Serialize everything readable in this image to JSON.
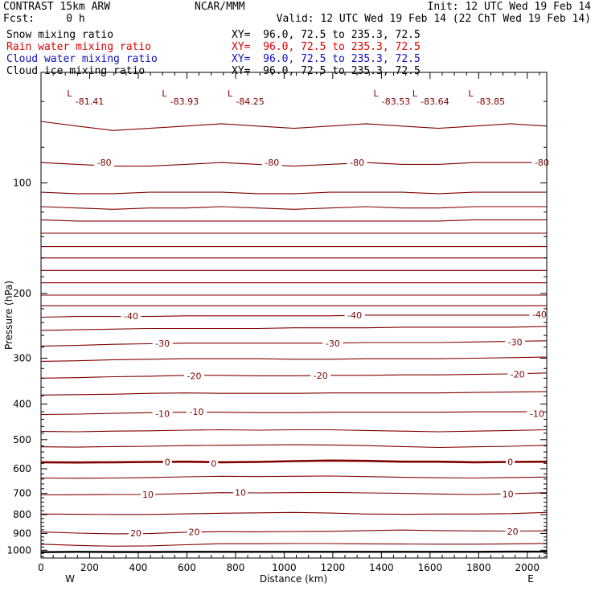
{
  "header": {
    "left1": "CONTRAST 15km ARW",
    "left2": "Fcst:     0 h",
    "center": "NCAR/MMM",
    "init": "Init: 12 UTC Wed 19 Feb 14",
    "valid": "Valid: 12 UTC Wed 19 Feb 14 (22 ChT Wed 19 Feb 14)",
    "fields": [
      {
        "name": "Snow mixing ratio",
        "xy": "XY=  96.0, 72.5 to 235.3, 72.5",
        "color": "#000000"
      },
      {
        "name": "Rain water mixing ratio",
        "xy": "XY=  96.0, 72.5 to 235.3, 72.5",
        "color": "#e00000"
      },
      {
        "name": "Cloud water mixing ratio",
        "xy": "XY=  96.0, 72.5 to 235.3, 72.5",
        "color": "#1010c0"
      },
      {
        "name": "Cloud ice mixing ratio",
        "xy": "XY=  96.0, 72.5 to 235.3, 72.5",
        "color": "#000000"
      }
    ]
  },
  "chart_data": {
    "type": "line",
    "xlabel": "Distance (km)",
    "ylabel": "Pressure (hPa)",
    "xlim": [
      0,
      2080
    ],
    "ylim": [
      1050,
      50
    ],
    "y_scale": "log",
    "x_ticks": [
      0,
      200,
      400,
      600,
      800,
      1000,
      1200,
      1400,
      1600,
      1800,
      2000
    ],
    "y_ticks": [
      100,
      200,
      300,
      400,
      500,
      600,
      700,
      800,
      900,
      1000
    ],
    "x_end_labels": {
      "left": "W",
      "right": "E"
    },
    "contour_color": "#800000",
    "terrain_color": "#000000",
    "contours": [
      {
        "level": -80,
        "p": [
          68,
          70,
          72,
          71,
          70,
          69,
          70,
          71,
          70,
          69,
          70,
          71,
          70,
          69,
          70
        ]
      },
      {
        "level": -80,
        "p": [
          88,
          89,
          90,
          90,
          89,
          88,
          89,
          90,
          89,
          88,
          89,
          89,
          88,
          88,
          88
        ]
      },
      {
        "level": null,
        "p": [
          106,
          107,
          107,
          106,
          106,
          106,
          107,
          107,
          106,
          106,
          106,
          107,
          106,
          106,
          106
        ]
      },
      {
        "level": null,
        "p": [
          116,
          117,
          118,
          117,
          117,
          116,
          117,
          118,
          117,
          116,
          117,
          117,
          116,
          116,
          116
        ]
      },
      {
        "level": null,
        "p": [
          126,
          127,
          127,
          127,
          127,
          127,
          127,
          127,
          127,
          127,
          127,
          127,
          126,
          126,
          126
        ]
      },
      {
        "level": null,
        "p": [
          137,
          137,
          137,
          137,
          137,
          137,
          137,
          137,
          137,
          137,
          137,
          137,
          137,
          137,
          137
        ]
      },
      {
        "level": null,
        "p": [
          149,
          149,
          149,
          149,
          149,
          149,
          149,
          149,
          149,
          149,
          149,
          149,
          149,
          149,
          149
        ]
      },
      {
        "level": null,
        "p": [
          160,
          160,
          160,
          160,
          160,
          160,
          160,
          160,
          160,
          160,
          160,
          160,
          160,
          160,
          160
        ]
      },
      {
        "level": null,
        "p": [
          173,
          173,
          173,
          173,
          173,
          173,
          173,
          173,
          173,
          173,
          173,
          173,
          173,
          173,
          173
        ]
      },
      {
        "level": null,
        "p": [
          187,
          187,
          187,
          187,
          187,
          187,
          187,
          187,
          187,
          187,
          187,
          187,
          187,
          187,
          187
        ]
      },
      {
        "level": null,
        "p": [
          202,
          202,
          202,
          202,
          202,
          202,
          202,
          202,
          202,
          202,
          202,
          202,
          202,
          202,
          202
        ]
      },
      {
        "level": null,
        "p": [
          216,
          216,
          216,
          216,
          216,
          216,
          216,
          216,
          216,
          216,
          216,
          216,
          216,
          216,
          216
        ]
      },
      {
        "level": -40,
        "p": [
          232,
          231,
          231,
          231,
          230,
          230,
          230,
          230,
          230,
          229,
          229,
          229,
          229,
          229,
          229
        ]
      },
      {
        "level": null,
        "p": [
          252,
          251,
          250,
          249,
          249,
          249,
          249,
          248,
          248,
          248,
          247,
          247,
          247,
          247,
          246
        ]
      },
      {
        "level": -30,
        "p": [
          278,
          277,
          275,
          274,
          273,
          273,
          273,
          273,
          273,
          272,
          272,
          272,
          271,
          270,
          269
        ]
      },
      {
        "level": null,
        "p": [
          306,
          305,
          303,
          302,
          301,
          301,
          301,
          302,
          302,
          301,
          301,
          301,
          300,
          299,
          298
        ]
      },
      {
        "level": -20,
        "p": [
          340,
          339,
          337,
          336,
          334,
          334,
          335,
          335,
          334,
          334,
          333,
          333,
          332,
          331,
          329
        ]
      },
      {
        "level": null,
        "p": [
          378,
          377,
          376,
          374,
          373,
          374,
          374,
          374,
          373,
          373,
          373,
          373,
          372,
          371,
          370
        ]
      },
      {
        "level": -10,
        "p": [
          427,
          426,
          424,
          422,
          421,
          421,
          422,
          422,
          421,
          421,
          421,
          421,
          420,
          420,
          419
        ]
      },
      {
        "level": null,
        "p": [
          475,
          476,
          474,
          473,
          471,
          470,
          471,
          470,
          470,
          472,
          474,
          476,
          474,
          472,
          470
        ]
      },
      {
        "level": null,
        "p": [
          523,
          524,
          522,
          521,
          519,
          518,
          517,
          516,
          517,
          519,
          522,
          525,
          523,
          521,
          518
        ]
      },
      {
        "level": 0,
        "p": [
          576,
          577,
          576,
          575,
          574,
          576,
          575,
          572,
          570,
          571,
          574,
          574,
          576,
          575,
          574
        ]
      },
      {
        "level": null,
        "p": [
          636,
          637,
          636,
          634,
          631,
          629,
          630,
          629,
          628,
          630,
          633,
          635,
          636,
          634,
          632
        ]
      },
      {
        "level": 10,
        "p": [
          707,
          706,
          705,
          705,
          701,
          697,
          698,
          697,
          696,
          698,
          700,
          703,
          705,
          702,
          697
        ]
      },
      {
        "level": null,
        "p": [
          797,
          798,
          799,
          799,
          796,
          793,
          791,
          789,
          792,
          797,
          798,
          797,
          797,
          795,
          789
        ]
      },
      {
        "level": 20,
        "p": [
          892,
          898,
          902,
          901,
          893,
          890,
          891,
          889,
          888,
          884,
          881,
          884,
          886,
          887,
          886
        ]
      },
      {
        "level": null,
        "p": [
          963,
          970,
          975,
          973,
          966,
          960,
          960,
          959,
          959,
          961,
          962,
          963,
          963,
          961,
          958
        ]
      }
    ],
    "terrain_p": [
      1012,
      1010,
      1011,
      1011,
      1010,
      1010,
      1010,
      1010,
      1010,
      1010,
      1010,
      1010,
      1010,
      1009,
      1009
    ],
    "contour_labels": [
      {
        "text": "-80",
        "x": 260,
        "p": 88
      },
      {
        "text": "-80",
        "x": 950,
        "p": 88
      },
      {
        "text": "-80",
        "x": 1300,
        "p": 88
      },
      {
        "text": "-80",
        "x": 2060,
        "p": 88
      },
      {
        "text": "-40",
        "x": 370,
        "p": 230
      },
      {
        "text": "-40",
        "x": 1290,
        "p": 229
      },
      {
        "text": "-40",
        "x": 2050,
        "p": 228
      },
      {
        "text": "-30",
        "x": 500,
        "p": 273
      },
      {
        "text": "-30",
        "x": 1200,
        "p": 273
      },
      {
        "text": "-30",
        "x": 1950,
        "p": 271
      },
      {
        "text": "-20",
        "x": 630,
        "p": 335
      },
      {
        "text": "-20",
        "x": 1150,
        "p": 334
      },
      {
        "text": "-20",
        "x": 1960,
        "p": 332
      },
      {
        "text": "-10",
        "x": 500,
        "p": 425
      },
      {
        "text": "-10",
        "x": 640,
        "p": 420
      },
      {
        "text": "-10",
        "x": 2040,
        "p": 425
      },
      {
        "text": "0",
        "x": 520,
        "p": 575
      },
      {
        "text": "0",
        "x": 710,
        "p": 580
      },
      {
        "text": "0",
        "x": 1930,
        "p": 575
      },
      {
        "text": "10",
        "x": 440,
        "p": 705
      },
      {
        "text": "10",
        "x": 820,
        "p": 697
      },
      {
        "text": "10",
        "x": 1920,
        "p": 703
      },
      {
        "text": "20",
        "x": 390,
        "p": 898
      },
      {
        "text": "20",
        "x": 630,
        "p": 892
      },
      {
        "text": "20",
        "x": 1940,
        "p": 890
      }
    ],
    "lows": [
      {
        "marker": "L",
        "value": "-81.41",
        "x": 200
      },
      {
        "marker": "L",
        "value": "-83.93",
        "x": 590
      },
      {
        "marker": "L",
        "value": "-84.25",
        "x": 860
      },
      {
        "marker": "L",
        "value": "-83.53",
        "x": 1460
      },
      {
        "marker": "L",
        "value": "-83.64",
        "x": 1620
      },
      {
        "marker": "L",
        "value": "-83.85",
        "x": 1850
      }
    ]
  }
}
